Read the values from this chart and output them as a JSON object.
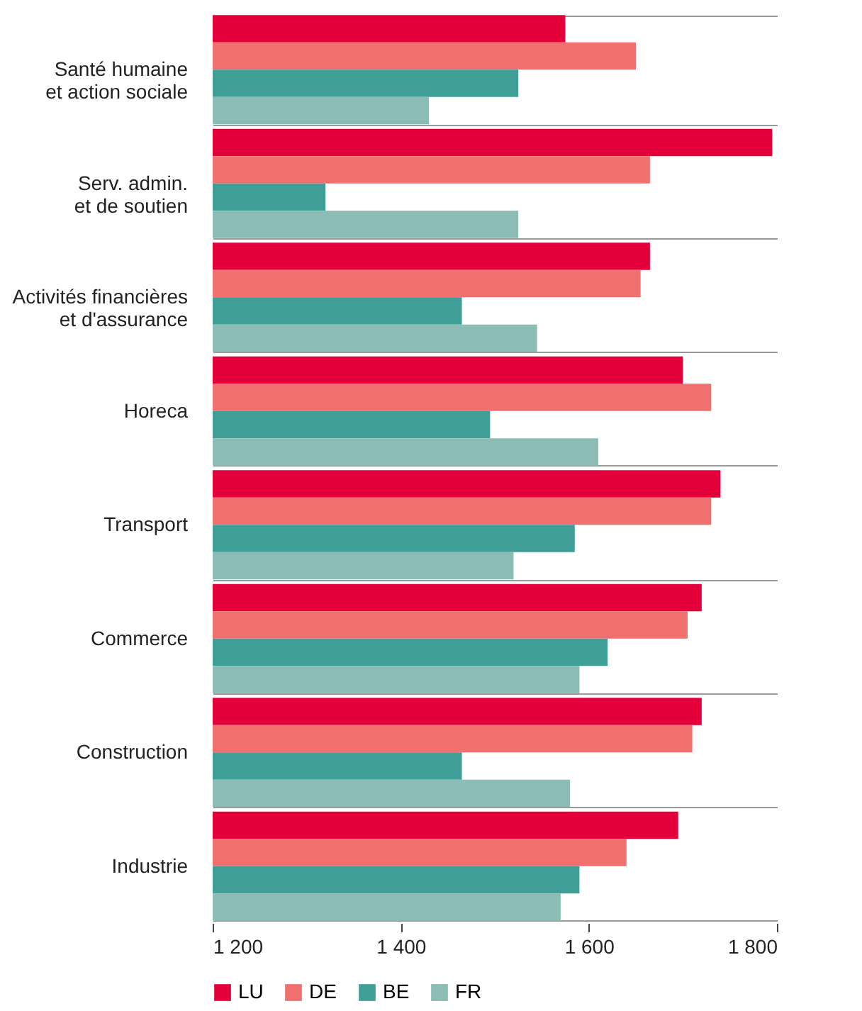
{
  "chart_data": {
    "type": "bar",
    "orientation": "horizontal",
    "categories": [
      "Santé humaine et action sociale",
      "Serv. admin. et de soutien",
      "Activités financières et d'assurance",
      "Horeca",
      "Transport",
      "Commerce",
      "Construction",
      "Industrie"
    ],
    "series": [
      {
        "name": "LU",
        "color": "#e4003a",
        "values": [
          1575,
          1795,
          1665,
          1700,
          1740,
          1720,
          1720,
          1695
        ]
      },
      {
        "name": "DE",
        "color": "#f07070",
        "values": [
          1650,
          1665,
          1655,
          1730,
          1730,
          1705,
          1710,
          1640
        ]
      },
      {
        "name": "BE",
        "color": "#3f9e96",
        "values": [
          1525,
          1320,
          1465,
          1495,
          1585,
          1620,
          1465,
          1590
        ]
      },
      {
        "name": "FR",
        "color": "#8bbcb5",
        "values": [
          1430,
          1525,
          1545,
          1610,
          1520,
          1590,
          1580,
          1570
        ]
      }
    ],
    "xlim": [
      1200,
      1800
    ],
    "xticks": [
      {
        "value": 1200,
        "label": "1 200"
      },
      {
        "value": 1400,
        "label": "1 400"
      },
      {
        "value": 1600,
        "label": "1 600"
      },
      {
        "value": 1800,
        "label": "1 800"
      }
    ],
    "grid": "y",
    "legend": "bottom"
  }
}
